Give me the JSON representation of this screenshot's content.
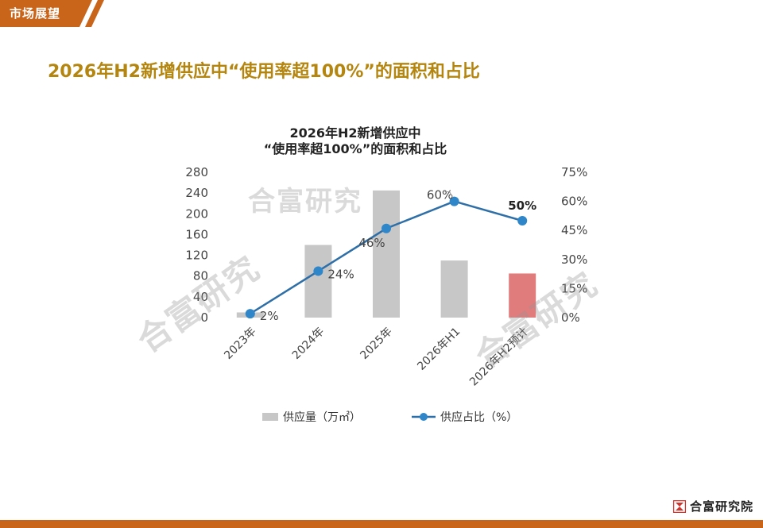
{
  "header": {
    "section_tag": "市场展望",
    "page_title": "2026年H2新增供应中“使用率超100%”的面积和占比"
  },
  "watermark_text": "合富研究",
  "brand": {
    "name": "合富研究院"
  },
  "colors": {
    "accent": "#b5860f",
    "tag": "#c8651b",
    "bar": "#c7c7c7",
    "bar_forecast": "#e07c7c",
    "line": "#2e6fa8",
    "point": "#2f86c9"
  },
  "chart_data": {
    "type": "bar+line",
    "title": [
      "2026年H2新增供应中",
      "“使用率超100%”的面积和占比"
    ],
    "categories": [
      "2023年",
      "2024年",
      "2025年",
      "2026年H1",
      "2026年H2预计"
    ],
    "series": [
      {
        "name": "供应量（万㎡）",
        "type": "bar",
        "axis": "left",
        "values": [
          10,
          140,
          245,
          110,
          85
        ]
      },
      {
        "name": "供应占比（%）",
        "type": "line",
        "axis": "right",
        "values": [
          2,
          24,
          46,
          60,
          50
        ]
      }
    ],
    "data_labels": [
      "2%",
      "24%",
      "46%",
      "60%",
      "50%"
    ],
    "highlight_index": 4,
    "y_left": {
      "min": 0,
      "max": 280,
      "ticks": [
        "0",
        "40",
        "80",
        "120",
        "160",
        "200",
        "240",
        "280"
      ]
    },
    "y_right": {
      "min": 0,
      "max": 75,
      "ticks": [
        "0%",
        "15%",
        "30%",
        "45%",
        "60%",
        "75%"
      ]
    },
    "legend_placement": "bottom",
    "grid": false
  }
}
